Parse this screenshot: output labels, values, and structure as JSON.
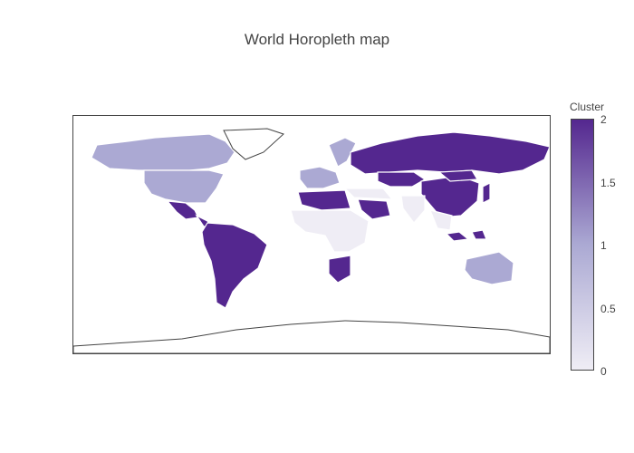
{
  "title": "World Horopleth map",
  "colorbar": {
    "title": "Cluster",
    "ticks": [
      "2",
      "1.5",
      "1",
      "0.5",
      "0"
    ],
    "range": [
      0,
      2
    ],
    "colors": [
      "#efedf5",
      "#aba9d3",
      "#54278f"
    ]
  },
  "map": {
    "projection": "equirectangular",
    "no_data_color": "#ffffff",
    "border_color": "#ffffff",
    "coastline_color": "#444444",
    "regions": [
      {
        "name": "Canada",
        "cluster": 1
      },
      {
        "name": "United States",
        "cluster": 1
      },
      {
        "name": "Mexico",
        "cluster": 2
      },
      {
        "name": "Central America",
        "cluster": 2
      },
      {
        "name": "South America",
        "cluster": 2
      },
      {
        "name": "Scandinavia",
        "cluster": 1
      },
      {
        "name": "Western Europe",
        "cluster": 1
      },
      {
        "name": "Russia",
        "cluster": 2
      },
      {
        "name": "Kazakhstan",
        "cluster": 2
      },
      {
        "name": "China",
        "cluster": 2
      },
      {
        "name": "Mongolia",
        "cluster": 2
      },
      {
        "name": "Japan",
        "cluster": 2
      },
      {
        "name": "North Africa",
        "cluster": 2
      },
      {
        "name": "Saudi Arabia",
        "cluster": 2
      },
      {
        "name": "Sub-Saharan Africa",
        "cluster": 0
      },
      {
        "name": "Southern Africa",
        "cluster": 2
      },
      {
        "name": "Middle East",
        "cluster": 0
      },
      {
        "name": "India",
        "cluster": 0
      },
      {
        "name": "Southeast Asia",
        "cluster": 0
      },
      {
        "name": "Indonesia",
        "cluster": 2
      },
      {
        "name": "Australia",
        "cluster": 1
      },
      {
        "name": "Greenland",
        "cluster": null
      },
      {
        "name": "Antarctica",
        "cluster": null
      }
    ]
  }
}
